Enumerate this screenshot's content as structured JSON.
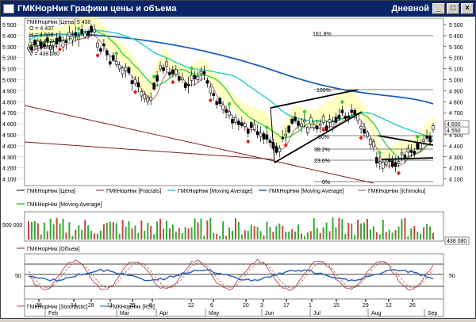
{
  "window": {
    "title": "ГМКНорНик Графики цены и объема",
    "period": "Дневной",
    "buttons": {
      "minimize": "_",
      "maximize": "□",
      "close": "×"
    }
  },
  "info_box": {
    "lines": [
      "ГМКНорНик [Цена] 5 430",
      "O = 4 437",
      "H = 4 568",
      "L = 4 413",
      "C = 4 550",
      "V = 438 080"
    ]
  },
  "price_axis": {
    "ticks": [
      "5 500",
      "5 400",
      "5 300",
      "5 200",
      "5 100",
      "5 000",
      "4 900",
      "4 800",
      "4 700",
      "4 600",
      "4 500",
      "4 400",
      "4 300",
      "4 200",
      "4 100"
    ],
    "current_label": "4 550",
    "level_label": "4 600"
  },
  "fibonacci": {
    "labels": [
      "161.8%",
      "100%",
      "50%",
      "38.2%",
      "23.6%",
      "0%"
    ]
  },
  "legend_price": [
    {
      "label": "ГМКНорНик [Цена]",
      "color": "#000000"
    },
    {
      "label": "ГМКНорНик [Fractals]",
      "color": "#7a1f1f"
    },
    {
      "label": "ГМКНорНик [Moving Average]",
      "color": "#33cccc"
    },
    {
      "label": "ГМКНорНик [Moving Average]",
      "color": "#1f5fb8"
    },
    {
      "label": "ГМКНорНик [Ichimoku]",
      "color": "#b04848"
    },
    {
      "label": "ГМКНорНик [Moving Average]",
      "color": "#33cc33"
    }
  ],
  "volume_pane": {
    "axis_label": "500 000",
    "current_label": "438 080",
    "legend": {
      "label": "ГМКНорНик [Объем]",
      "color": "#7a1f1f"
    }
  },
  "oscillator_pane": {
    "axis_label": "50",
    "legend": [
      {
        "label": "ГМКНорНик [Stochastic]",
        "color": "#b04848"
      },
      {
        "label": "ГМКНорНик [RSI]",
        "color": "#1f5fb8"
      }
    ]
  },
  "date_axis": {
    "days": [
      "28",
      "14",
      "28",
      "11",
      "25",
      "8",
      "22",
      "6",
      "20",
      "3",
      "17",
      "1",
      "15",
      "29",
      "12",
      "26"
    ],
    "months": [
      "Feb",
      "Mar",
      "Apr",
      "May",
      "Jun",
      "Jul",
      "Aug",
      "Sep"
    ]
  }
}
